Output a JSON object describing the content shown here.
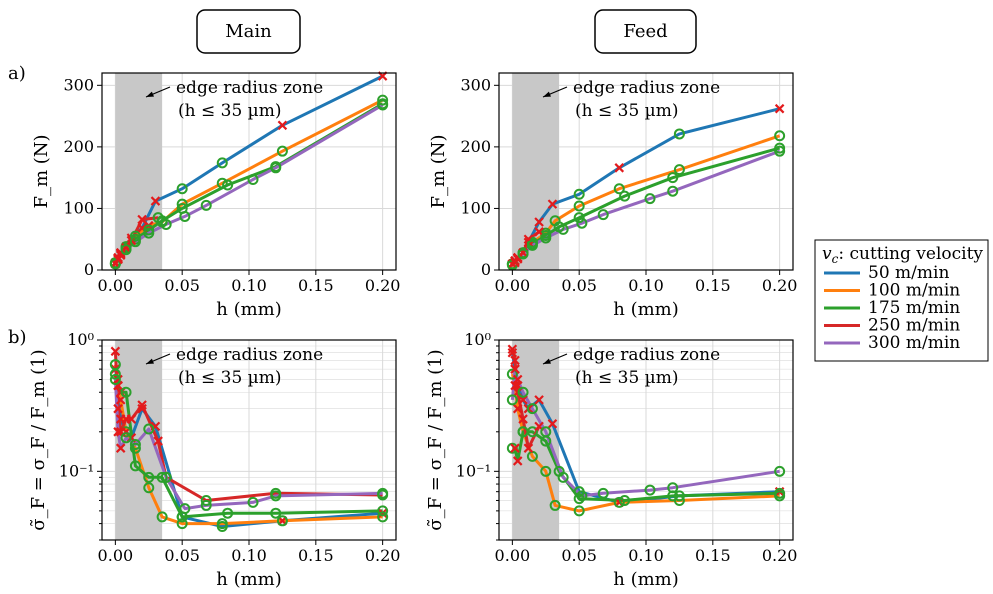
{
  "columns": [
    {
      "label": "Main"
    },
    {
      "label": "Feed"
    }
  ],
  "row_labels": {
    "a": "a)",
    "b": "b)"
  },
  "colors": {
    "50": "#1f77b4",
    "100": "#ff7f0e",
    "175": "#2ca02c",
    "250": "#d62728",
    "300": "#9467bd",
    "circle_marker": "#2ca02c",
    "cross_marker": "#e31a1c",
    "shaded_zone": "#c8c8c8",
    "grid": "#d9d9d9"
  },
  "legend": {
    "title_var": "v",
    "title_sub": "c",
    "title_rest": ": cutting velocity",
    "entries": [
      {
        "key": "50",
        "label": "50  m/min"
      },
      {
        "key": "100",
        "label": "100  m/min"
      },
      {
        "key": "175",
        "label": "175  m/min"
      },
      {
        "key": "250",
        "label": "250  m/min"
      },
      {
        "key": "300",
        "label": "300  m/min"
      }
    ]
  },
  "annotation": {
    "line1": "edge radius zone",
    "line2": "(h ≤ 35 µm)"
  },
  "chart_data": [
    {
      "type": "line",
      "panel": "a",
      "column": "Main",
      "xlabel": "h (mm)",
      "ylabel": "F_m (N)",
      "xlim": [
        -0.01,
        0.21
      ],
      "ylim": [
        0,
        320
      ],
      "yscale": "linear",
      "xticks": [
        0.0,
        0.05,
        0.1,
        0.15,
        0.2
      ],
      "xtick_labels": [
        "0.00",
        "0.05",
        "0.10",
        "0.15",
        "0.20"
      ],
      "yticks": [
        0,
        100,
        200,
        300
      ],
      "ytick_labels": [
        "0",
        "100",
        "200",
        "300"
      ],
      "shaded_x": [
        0,
        0.035
      ],
      "grid": true,
      "series": [
        {
          "name": "50  m/min",
          "key": "50",
          "x": [
            0.0,
            0.002,
            0.004,
            0.008,
            0.012,
            0.02,
            0.03,
            0.05,
            0.08,
            0.125,
            0.2
          ],
          "y": [
            12,
            20,
            28,
            38,
            52,
            68,
            112,
            132,
            174,
            235,
            315
          ],
          "m": [
            "x",
            "x",
            "x",
            "x",
            "x",
            "x",
            "x",
            "o",
            "o",
            "x",
            "x"
          ]
        },
        {
          "name": "100  m/min",
          "key": "100",
          "x": [
            0.0,
            0.002,
            0.004,
            0.008,
            0.015,
            0.025,
            0.035,
            0.05,
            0.08,
            0.125,
            0.2
          ],
          "y": [
            12,
            20,
            28,
            38,
            55,
            72,
            78,
            107,
            141,
            193,
            276
          ],
          "m": [
            "o",
            "x",
            "x",
            "o",
            "o",
            "x",
            "o",
            "o",
            "o",
            "o",
            "o"
          ]
        },
        {
          "name": "175  m/min",
          "key": "175",
          "x": [
            0.0,
            0.002,
            0.004,
            0.008,
            0.015,
            0.025,
            0.035,
            0.05,
            0.084,
            0.12,
            0.2
          ],
          "y": [
            10,
            18,
            26,
            36,
            50,
            65,
            80,
            100,
            138,
            168,
            270
          ],
          "m": [
            "o",
            "x",
            "x",
            "o",
            "o",
            "o",
            "o",
            "o",
            "o",
            "o",
            "o"
          ]
        },
        {
          "name": "250  m/min",
          "key": "250",
          "x": [
            0.0,
            0.002,
            0.004,
            0.008,
            0.012,
            0.02,
            0.032
          ],
          "y": [
            10,
            18,
            26,
            36,
            48,
            82,
            85
          ],
          "m": [
            "x",
            "x",
            "x",
            "x",
            "x",
            "x",
            "o"
          ]
        },
        {
          "name": "300  m/min",
          "key": "300",
          "x": [
            0.0,
            0.002,
            0.004,
            0.008,
            0.015,
            0.025,
            0.038,
            0.052,
            0.068,
            0.103,
            0.12,
            0.2
          ],
          "y": [
            10,
            17,
            24,
            33,
            46,
            60,
            74,
            87,
            105,
            147,
            166,
            268
          ],
          "m": [
            "o",
            "x",
            "x",
            "o",
            "o",
            "o",
            "o",
            "o",
            "o",
            "o",
            "o",
            "o"
          ]
        }
      ]
    },
    {
      "type": "line",
      "panel": "a",
      "column": "Feed",
      "xlabel": "h (mm)",
      "ylabel": "F_m (N)",
      "xlim": [
        -0.01,
        0.21
      ],
      "ylim": [
        0,
        320
      ],
      "yscale": "linear",
      "xticks": [
        0.0,
        0.05,
        0.1,
        0.15,
        0.2
      ],
      "xtick_labels": [
        "0.00",
        "0.05",
        "0.10",
        "0.15",
        "0.20"
      ],
      "yticks": [
        0,
        100,
        200,
        300
      ],
      "ytick_labels": [
        "0",
        "100",
        "200",
        "300"
      ],
      "shaded_x": [
        0,
        0.035
      ],
      "grid": true,
      "series": [
        {
          "name": "50  m/min",
          "key": "50",
          "x": [
            0.0,
            0.002,
            0.004,
            0.008,
            0.012,
            0.02,
            0.03,
            0.05,
            0.08,
            0.125,
            0.2
          ],
          "y": [
            10,
            15,
            20,
            28,
            45,
            78,
            107,
            123,
            166,
            221,
            262
          ],
          "m": [
            "x",
            "x",
            "x",
            "x",
            "x",
            "x",
            "x",
            "o",
            "x",
            "o",
            "x"
          ]
        },
        {
          "name": "100  m/min",
          "key": "100",
          "x": [
            0.0,
            0.002,
            0.004,
            0.008,
            0.015,
            0.025,
            0.032,
            0.05,
            0.08,
            0.125,
            0.2
          ],
          "y": [
            10,
            15,
            20,
            28,
            45,
            60,
            80,
            104,
            132,
            163,
            218
          ],
          "m": [
            "o",
            "x",
            "x",
            "o",
            "o",
            "o",
            "o",
            "o",
            "o",
            "o",
            "o"
          ]
        },
        {
          "name": "175  m/min",
          "key": "175",
          "x": [
            0.0,
            0.002,
            0.004,
            0.008,
            0.015,
            0.025,
            0.035,
            0.05,
            0.084,
            0.12,
            0.2
          ],
          "y": [
            10,
            15,
            20,
            28,
            42,
            56,
            70,
            85,
            120,
            150,
            198
          ],
          "m": [
            "o",
            "x",
            "x",
            "o",
            "o",
            "o",
            "o",
            "o",
            "o",
            "o",
            "o"
          ]
        },
        {
          "name": "250  m/min",
          "key": "250",
          "x": [
            0.0,
            0.002,
            0.004,
            0.008,
            0.012,
            0.02
          ],
          "y": [
            10,
            15,
            20,
            28,
            50,
            62
          ],
          "m": [
            "x",
            "x",
            "x",
            "x",
            "x",
            "x"
          ]
        },
        {
          "name": "300  m/min",
          "key": "300",
          "x": [
            0.0,
            0.002,
            0.004,
            0.008,
            0.015,
            0.025,
            0.038,
            0.052,
            0.068,
            0.103,
            0.12,
            0.2
          ],
          "y": [
            8,
            12,
            18,
            26,
            40,
            52,
            66,
            76,
            90,
            116,
            128,
            193
          ],
          "m": [
            "o",
            "x",
            "x",
            "o",
            "o",
            "o",
            "o",
            "o",
            "o",
            "o",
            "o",
            "o"
          ]
        }
      ]
    },
    {
      "type": "line",
      "panel": "b",
      "column": "Main",
      "xlabel": "h (mm)",
      "ylabel": "σ̃_F = σ_F / F_m (1)",
      "xlim": [
        -0.01,
        0.21
      ],
      "ylim": [
        0.03,
        1.0
      ],
      "yscale": "log",
      "xticks": [
        0.0,
        0.05,
        0.1,
        0.15,
        0.2
      ],
      "xtick_labels": [
        "0.00",
        "0.05",
        "0.10",
        "0.15",
        "0.20"
      ],
      "yticks": [
        0.1,
        1.0
      ],
      "ytick_labels": [
        "10⁻¹",
        "10⁰"
      ],
      "shaded_x": [
        0,
        0.035
      ],
      "grid": true,
      "series": [
        {
          "name": "50  m/min",
          "key": "50",
          "x": [
            0.0,
            0.002,
            0.004,
            0.008,
            0.012,
            0.02,
            0.03,
            0.05,
            0.08,
            0.125,
            0.2
          ],
          "y": [
            0.6,
            0.45,
            0.25,
            0.2,
            0.18,
            0.3,
            0.22,
            0.045,
            0.038,
            0.042,
            0.048
          ],
          "m": [
            "x",
            "x",
            "x",
            "x",
            "x",
            "x",
            "x",
            "o",
            "o",
            "x",
            "x"
          ]
        },
        {
          "name": "100  m/min",
          "key": "100",
          "x": [
            0.0,
            0.002,
            0.004,
            0.008,
            0.015,
            0.025,
            0.035,
            0.05,
            0.08,
            0.125,
            0.2
          ],
          "y": [
            0.65,
            0.5,
            0.35,
            0.2,
            0.15,
            0.075,
            0.045,
            0.04,
            0.04,
            0.042,
            0.045
          ],
          "m": [
            "o",
            "x",
            "x",
            "o",
            "o",
            "o",
            "o",
            "o",
            "o",
            "o",
            "o"
          ]
        },
        {
          "name": "175  m/min",
          "key": "175",
          "x": [
            0.0,
            0.002,
            0.004,
            0.008,
            0.015,
            0.025,
            0.035,
            0.05,
            0.084,
            0.12,
            0.2
          ],
          "y": [
            0.55,
            0.45,
            0.4,
            0.4,
            0.11,
            0.09,
            0.09,
            0.045,
            0.048,
            0.048,
            0.05
          ],
          "m": [
            "o",
            "x",
            "x",
            "o",
            "o",
            "o",
            "o",
            "o",
            "o",
            "o",
            "o"
          ]
        },
        {
          "name": "250  m/min",
          "key": "250",
          "x": [
            0.0,
            0.002,
            0.004,
            0.008,
            0.012,
            0.02,
            0.032,
            0.038,
            0.068,
            0.12,
            0.2
          ],
          "y": [
            0.82,
            0.3,
            0.2,
            0.25,
            0.25,
            0.32,
            0.17,
            0.09,
            0.06,
            0.068,
            0.066
          ],
          "m": [
            "x",
            "x",
            "x",
            "x",
            "x",
            "x",
            "x",
            "o",
            "o",
            "o",
            "o"
          ]
        },
        {
          "name": "300  m/min",
          "key": "300",
          "x": [
            0.0,
            0.002,
            0.004,
            0.008,
            0.015,
            0.025,
            0.038,
            0.052,
            0.068,
            0.103,
            0.12,
            0.2
          ],
          "y": [
            0.5,
            0.2,
            0.15,
            0.18,
            0.16,
            0.21,
            0.09,
            0.052,
            0.055,
            0.058,
            0.065,
            0.068
          ],
          "m": [
            "o",
            "x",
            "x",
            "o",
            "o",
            "o",
            "o",
            "o",
            "o",
            "o",
            "o",
            "o"
          ]
        }
      ]
    },
    {
      "type": "line",
      "panel": "b",
      "column": "Feed",
      "xlabel": "h (mm)",
      "ylabel": "σ̃_F = σ_F / F_m (1)",
      "xlim": [
        -0.01,
        0.21
      ],
      "ylim": [
        0.03,
        1.0
      ],
      "yscale": "log",
      "xticks": [
        0.0,
        0.05,
        0.1,
        0.15,
        0.2
      ],
      "xtick_labels": [
        "0.00",
        "0.05",
        "0.10",
        "0.15",
        "0.20"
      ],
      "yticks": [
        0.1,
        1.0
      ],
      "ytick_labels": [
        "10⁻¹",
        "10⁰"
      ],
      "shaded_x": [
        0,
        0.035
      ],
      "grid": true,
      "series": [
        {
          "name": "50  m/min",
          "key": "50",
          "x": [
            0.0,
            0.002,
            0.004,
            0.008,
            0.012,
            0.02,
            0.03,
            0.05,
            0.08,
            0.125,
            0.2
          ],
          "y": [
            0.8,
            0.6,
            0.45,
            0.35,
            0.3,
            0.35,
            0.23,
            0.07,
            0.058,
            0.065,
            0.07
          ],
          "m": [
            "x",
            "x",
            "x",
            "x",
            "x",
            "x",
            "x",
            "o",
            "x",
            "o",
            "x"
          ]
        },
        {
          "name": "100  m/min",
          "key": "100",
          "x": [
            0.0,
            0.002,
            0.004,
            0.008,
            0.015,
            0.025,
            0.032,
            0.05,
            0.08,
            0.125,
            0.2
          ],
          "y": [
            0.55,
            0.45,
            0.3,
            0.2,
            0.13,
            0.1,
            0.055,
            0.05,
            0.058,
            0.06,
            0.065
          ],
          "m": [
            "o",
            "x",
            "x",
            "o",
            "o",
            "o",
            "o",
            "o",
            "o",
            "o",
            "o"
          ]
        },
        {
          "name": "175  m/min",
          "key": "175",
          "x": [
            0.0,
            0.002,
            0.004,
            0.008,
            0.015,
            0.025,
            0.035,
            0.05,
            0.084,
            0.12,
            0.2
          ],
          "y": [
            0.15,
            0.15,
            0.12,
            0.2,
            0.2,
            0.17,
            0.1,
            0.062,
            0.06,
            0.065,
            0.068
          ],
          "m": [
            "o",
            "x",
            "x",
            "o",
            "o",
            "o",
            "o",
            "o",
            "o",
            "o",
            "o"
          ]
        },
        {
          "name": "250  m/min",
          "key": "250",
          "x": [
            0.0,
            0.002,
            0.004,
            0.008,
            0.012,
            0.02
          ],
          "y": [
            0.85,
            0.7,
            0.4,
            0.25,
            0.15,
            0.22
          ],
          "m": [
            "x",
            "x",
            "x",
            "x",
            "x",
            "x"
          ]
        },
        {
          "name": "300  m/min",
          "key": "300",
          "x": [
            0.0,
            0.002,
            0.004,
            0.008,
            0.015,
            0.025,
            0.038,
            0.052,
            0.068,
            0.103,
            0.12,
            0.2
          ],
          "y": [
            0.35,
            0.6,
            0.5,
            0.4,
            0.3,
            0.2,
            0.09,
            0.065,
            0.068,
            0.072,
            0.075,
            0.1
          ],
          "m": [
            "o",
            "x",
            "x",
            "o",
            "o",
            "o",
            "o",
            "o",
            "o",
            "o",
            "o",
            "o"
          ]
        }
      ]
    }
  ]
}
